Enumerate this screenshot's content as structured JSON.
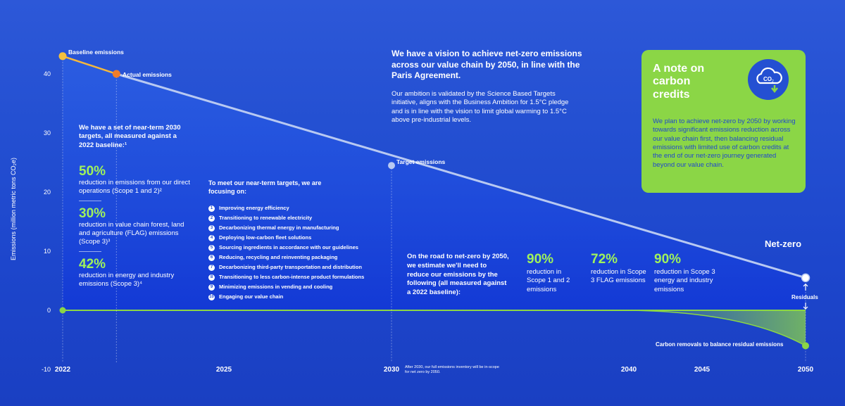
{
  "chart_data": {
    "type": "line",
    "ylabel": "Emissions (million metric tons CO₂e)",
    "ylim": [
      -10,
      40
    ],
    "yticks": [
      40,
      30,
      20,
      10,
      0,
      -10
    ],
    "xticks": [
      "2022",
      "2025",
      "2030",
      "2040",
      "2045",
      "2050"
    ],
    "series": [
      {
        "name": "Baseline emissions",
        "x": [
          2022
        ],
        "y": [
          43
        ]
      },
      {
        "name": "Actual emissions",
        "x": [
          2023
        ],
        "y": [
          40
        ]
      },
      {
        "name": "Target emissions",
        "x": [
          2030
        ],
        "y": [
          24.5
        ]
      },
      {
        "name": "Net-zero",
        "x": [
          2050
        ],
        "y": [
          5.5
        ]
      },
      {
        "name": "Carbon removals to balance residual emissions",
        "x": [
          2050
        ],
        "y": [
          -6
        ]
      }
    ],
    "point_labels": {
      "baseline": "Baseline emissions",
      "actual": "Actual emissions",
      "target": "Target emissions",
      "netzero": "Net-zero",
      "residuals": "Residuals",
      "removals": "Carbon removals to balance residual emissions"
    },
    "footnote": "After 2030, our full emissions inventory will be in-scope for net zero by 2050."
  },
  "vision": {
    "heading": "We have a vision to achieve net-zero emissions across our value chain by 2050, in line with the Paris Agreement.",
    "body": "Our ambition is validated by the Science Based Targets initiative, aligns with the Business Ambition for 1.5°C pledge and is in line with the vision to limit global warming to 1.5°C above pre-industrial levels."
  },
  "near_term": {
    "intro": "We have a set of near-term 2030 targets, all measured against a 2022 baseline:¹",
    "targets": [
      {
        "value": "50%",
        "text": "reduction in emissions from our direct operations (Scope 1 and 2)²"
      },
      {
        "value": "30%",
        "text": "reduction in value chain forest, land and agriculture (FLAG) emissions (Scope 3)³"
      },
      {
        "value": "42%",
        "text": "reduction in energy and industry emissions (Scope 3)⁴"
      }
    ]
  },
  "focus": {
    "intro": "To meet our near-term targets, we are focusing on:",
    "items": [
      "Improving energy efficiency",
      "Transitioning to renewable electricity",
      "Decarbonizing thermal energy in manufacturing",
      "Deploying low-carbon fleet solutions",
      "Sourcing ingredients in accordance with our guidelines",
      "Reducing, recycling and reinventing packaging",
      "Decarbonizing third-party transportation and distribution",
      "Transitioning to less carbon-intense product formulations",
      "Minimizing emissions in vending and cooling",
      "Engaging our value chain"
    ]
  },
  "road": {
    "intro": "On the road to net-zero by 2050, we estimate we'll need to reduce our emissions by the following (all measured against a 2022 baseline):",
    "stats": [
      {
        "value": "90%",
        "text": "reduction in Scope 1 and 2 emissions"
      },
      {
        "value": "72%",
        "text": "reduction in Scope 3 FLAG emissions"
      },
      {
        "value": "90%",
        "text": "reduction in Scope 3 energy and industry emissions"
      }
    ]
  },
  "note": {
    "title": "A note on carbon credits",
    "body": "We plan to achieve net-zero by 2050 by working towards significant emissions reduction across our value chain first, then balancing residual emissions with limited use of carbon credits at the end of our net-zero journey generated beyond our value chain.",
    "icon": "co2-cloud-icon"
  },
  "colors": {
    "accent_green": "#8bd646",
    "baseline_dot": "#f5c13c",
    "actual_dot": "#f07d2a",
    "line": "#b8c9f2",
    "zero_line": "#8bd646"
  }
}
